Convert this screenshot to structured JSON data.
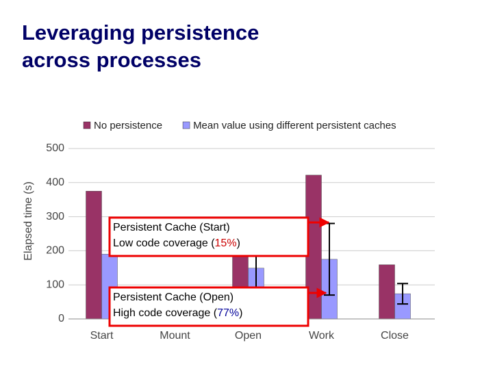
{
  "chart_data": {
    "type": "bar",
    "title": [
      "Leveraging persistence",
      "across processes"
    ],
    "y_label": "Elapsed time (s)",
    "categories": [
      "Start",
      "Mount",
      "Open",
      "Work",
      "Close"
    ],
    "series": [
      {
        "name": "No persistence",
        "color": "#993366",
        "values": [
          375,
          null,
          230,
          422,
          159
        ]
      },
      {
        "name": "Mean value using different persistent caches",
        "color": "#9999ff",
        "values": [
          190,
          null,
          149,
          175,
          74
        ],
        "errors": [
          null,
          null,
          90,
          105,
          30
        ]
      }
    ],
    "ylim": [
      0,
      500
    ],
    "yticks": [
      0,
      100,
      200,
      300,
      400,
      500
    ],
    "grid": true,
    "annotations": [
      {
        "line1": "Persistent Cache (Start)",
        "line2": "Low code coverage (",
        "highlight": "15%",
        "highlight_color": "#cc0000",
        "end": ")"
      },
      {
        "line1": "Persistent Cache (Open)",
        "line2": "High code coverage (",
        "highlight": "77%",
        "highlight_color": "#000099",
        "end": ")"
      }
    ]
  }
}
